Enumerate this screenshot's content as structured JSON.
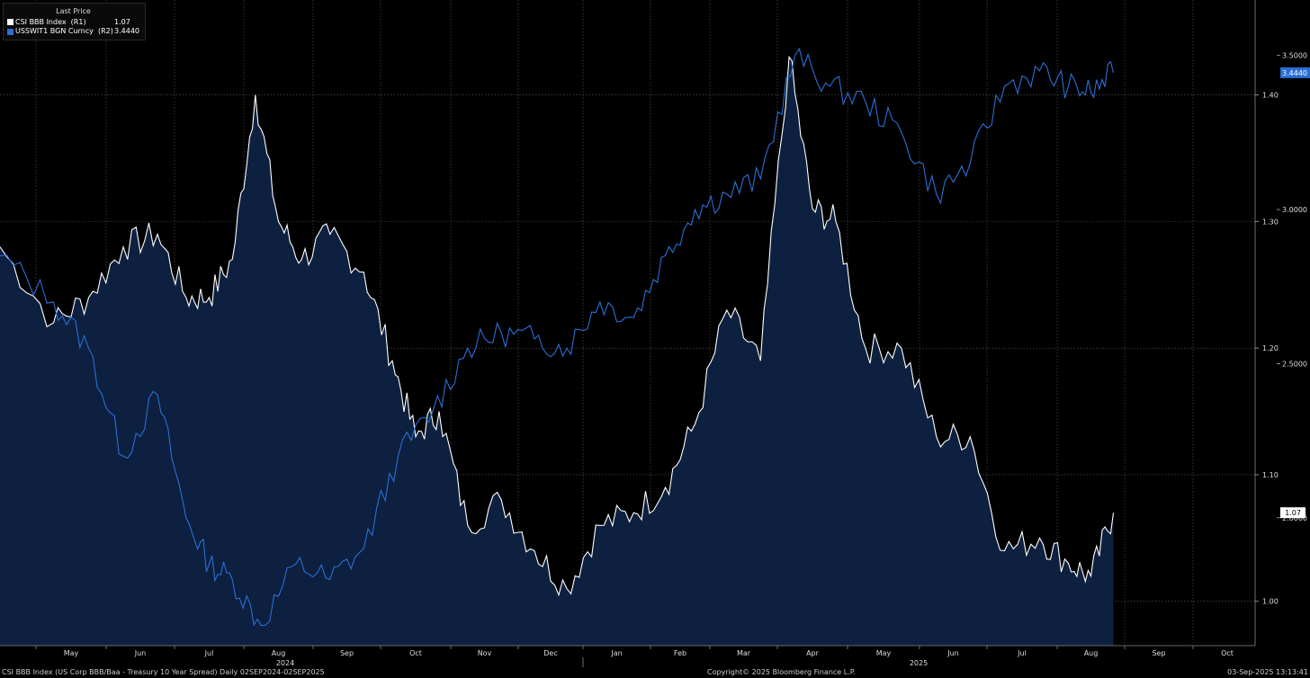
{
  "legend": {
    "header": "Last Price",
    "items": [
      {
        "name": "CSI BBB Index  (R1)",
        "value": "1.07",
        "color": "#ffffff"
      },
      {
        "name": "USSWIT1 BGN Curncy  (R2)",
        "value": "3.4440",
        "color": "#2a6fd6"
      }
    ]
  },
  "footer": {
    "left": "CSI BBB Index (US Corp BBB/Baa - Treasury 10 Year Spread)  Daily 02SEP2024-02SEP2025",
    "center": "Copyright© 2025 Bloomberg Finance L.P.",
    "right": "03-Sep-2025 13:13:41"
  },
  "chart_data": {
    "type": "line",
    "x_axis": {
      "months": [
        "May",
        "Jun",
        "Jul",
        "Aug",
        "Sep",
        "Oct",
        "Nov",
        "Dec",
        "Jan",
        "Feb",
        "Mar",
        "Apr",
        "May",
        "Jun",
        "Jul",
        "Aug",
        "Sep",
        "Oct"
      ],
      "year_labels": [
        "2024",
        "2025"
      ]
    },
    "axis_r1": {
      "ticks": [
        "1.00",
        "1.10",
        "1.20",
        "1.30",
        "1.40"
      ],
      "range": [
        0.965,
        1.475
      ]
    },
    "axis_r2": {
      "ticks": [
        "2.0000",
        "2.5000",
        "3.0000",
        "3.5000"
      ],
      "range": [
        1.585,
        3.68
      ]
    },
    "grid": true,
    "series": [
      {
        "name": "CSI BBB Index  (R1)",
        "color": "#ffffff",
        "axis": "R1",
        "last_label": "1.07",
        "x": [
          "Apr",
          "May",
          "May",
          "Jun",
          "Jun",
          "Jul",
          "Jul",
          "Jul",
          "Aug",
          "Aug",
          "Aug",
          "Sep",
          "Sep",
          "Oct",
          "Oct",
          "Oct",
          "Nov",
          "Nov",
          "Dec",
          "Dec",
          "Jan",
          "Jan",
          "Feb",
          "Feb",
          "Mar",
          "Mar",
          "Apr",
          "Apr",
          "Apr",
          "May",
          "May",
          "Jun",
          "Jun",
          "Jul",
          "Jul",
          "Aug",
          "Aug",
          "Aug"
        ],
        "values": [
          1.28,
          1.22,
          1.24,
          1.28,
          1.29,
          1.24,
          1.24,
          1.27,
          1.4,
          1.3,
          1.27,
          1.29,
          1.26,
          1.19,
          1.13,
          1.15,
          1.06,
          1.08,
          1.04,
          1.01,
          1.06,
          1.07,
          1.09,
          1.14,
          1.23,
          1.19,
          1.43,
          1.31,
          1.3,
          1.2,
          1.2,
          1.13,
          1.13,
          1.04,
          1.05,
          1.03,
          1.02,
          1.07
        ]
      },
      {
        "name": "USSWIT1 BGN Curncy  (R2)",
        "color": "#2a6fd6",
        "axis": "R2",
        "last_label": "3.4440",
        "x": [
          "Apr",
          "May",
          "May",
          "Jun",
          "Jun",
          "Jul",
          "Jul",
          "Jul",
          "Aug",
          "Aug",
          "Sep",
          "Sep",
          "Oct",
          "Oct",
          "Nov",
          "Nov",
          "Dec",
          "Dec",
          "Jan",
          "Jan",
          "Feb",
          "Feb",
          "Mar",
          "Mar",
          "Apr",
          "Apr",
          "May",
          "May",
          "Jun",
          "Jun",
          "Jul",
          "Jul",
          "Aug",
          "Aug",
          "Aug"
        ],
        "values": [
          2.85,
          2.7,
          2.55,
          2.2,
          2.4,
          2.0,
          1.85,
          1.8,
          1.65,
          1.85,
          1.8,
          1.9,
          2.2,
          2.35,
          2.55,
          2.6,
          2.58,
          2.55,
          2.7,
          2.65,
          2.85,
          3.0,
          3.05,
          3.1,
          3.5,
          3.4,
          3.35,
          3.25,
          3.05,
          3.15,
          3.4,
          3.45,
          3.4,
          3.38,
          3.444
        ]
      }
    ]
  }
}
